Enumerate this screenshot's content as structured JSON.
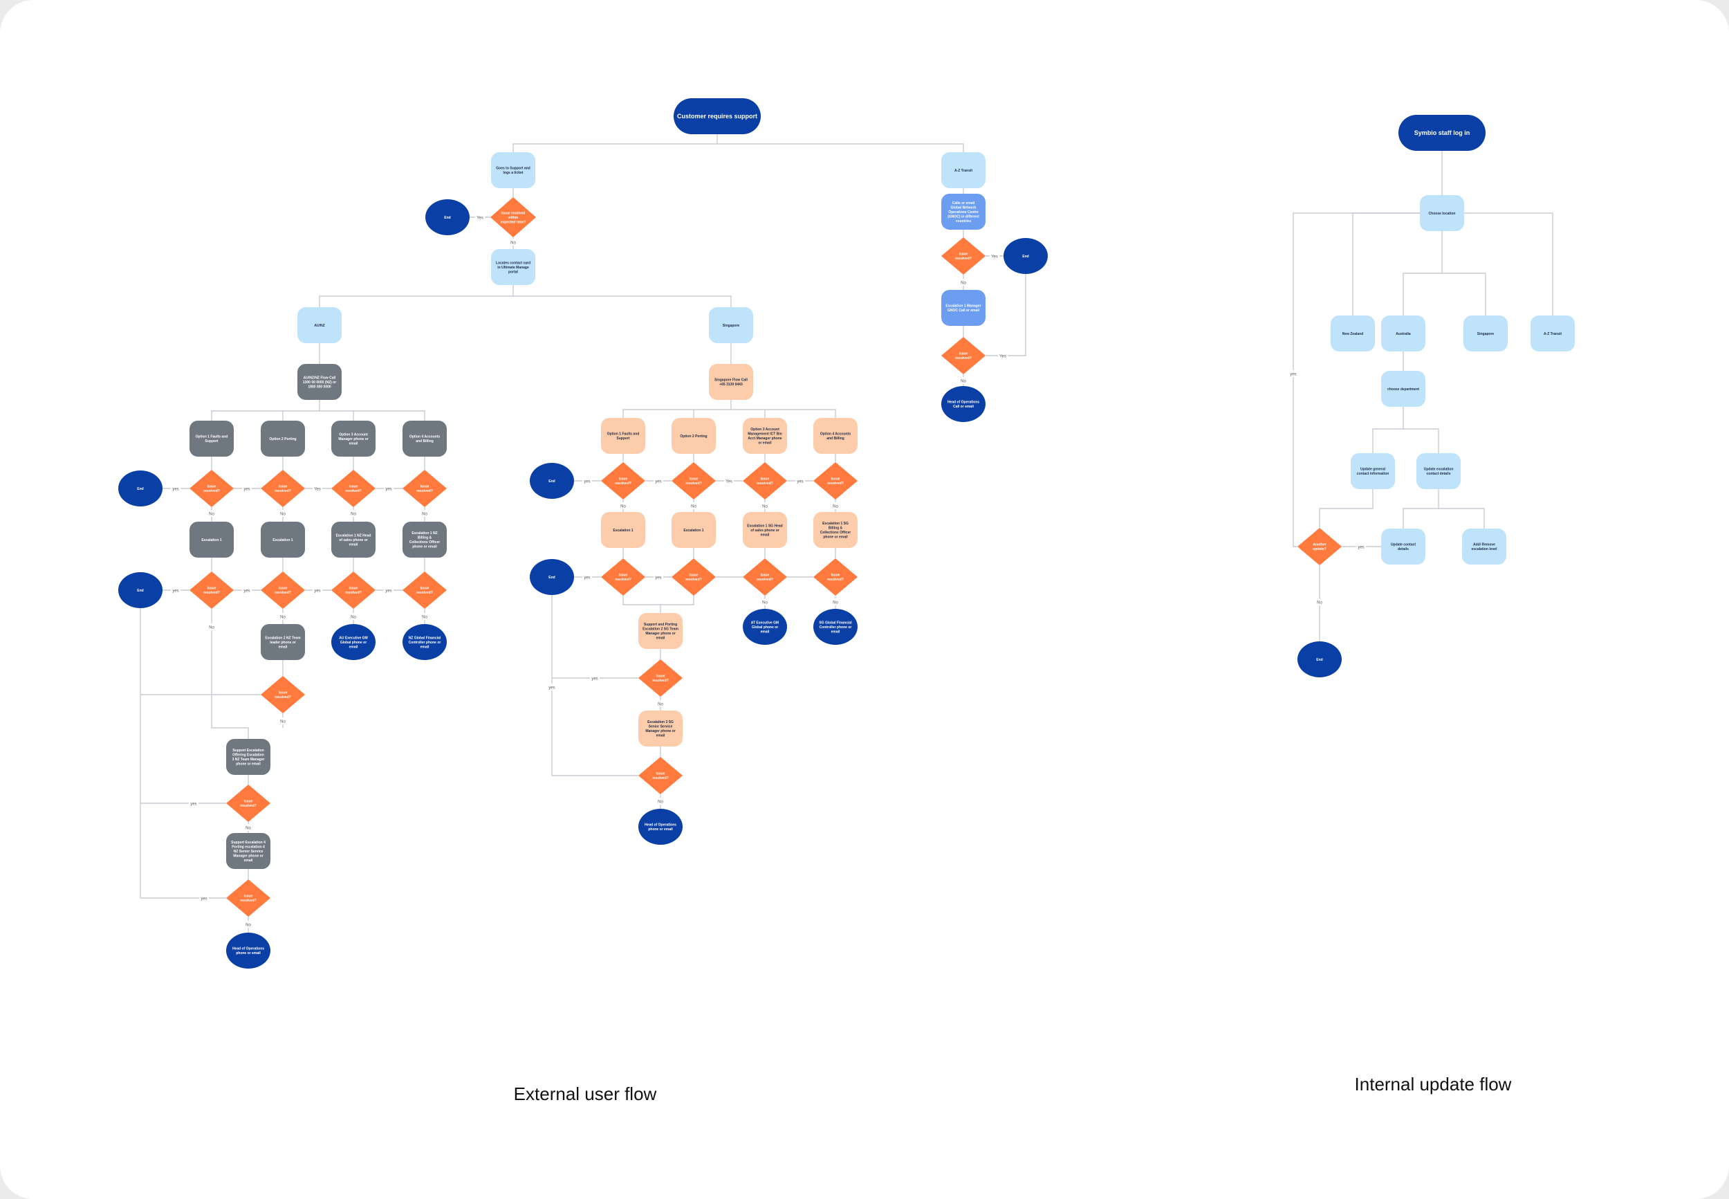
{
  "captions": {
    "external": "External user flow",
    "internal": "Internal update flow"
  },
  "colors": {
    "dark_blue": "#0a3fa6",
    "light_blue": "#bfe3fb",
    "mid_blue": "#6b9df0",
    "gray": "#6f7781",
    "peach": "#fdccaa",
    "orange": "#ff7a3c",
    "line": "#c8ccd2"
  },
  "nodes": {
    "start_ext": "Customer requires support",
    "raise_ticket": "Goes to Support and logs a ticket",
    "issue_resolved_within": "Issue resolved within expected time?",
    "end_top": "End",
    "locates_contact": "Locates contact card in Ultimate Manage portal",
    "au_region": "AU/NZ",
    "au_phone": "AU/NZ/NZ Flow Call 1300 00 0000 (NZ) or 1800 000 0000",
    "au_opt1": "Option 1 Faults and Support",
    "au_opt2": "Option 2 Porting",
    "au_opt3": "Option 3 Account Manager phone or email",
    "au_opt4": "Option 4 Accounts and Billing",
    "au_esc1a": "Escalation 1",
    "au_esc1b": "Escalation 1",
    "au_esc1c": "Escalation 1 NZ Head of sales phone or email",
    "au_esc1d": "Escalation 1 NZ Billing & Collections Officer phone or email",
    "au_end_exec": "AU Executive GM Global phone or email",
    "au_end_cfo": "NZ Global Financial Controller phone or email",
    "au_esc2": "Escalation 2 NZ Team leader phone or email",
    "au_support3": "Support Escalation Offering Escalation 3 NZ Team Manager phone or email",
    "au_support4": "Support Escalation 4 Porting escalation 4 NZ Senior Service Manager phone or email",
    "au_end_head": "Head of Operations phone or email",
    "sg_region": "Singapore",
    "sg_phone": "Singapore Flow Call +65 3130 0443",
    "sg_opt1": "Option 1 Faults and Support",
    "sg_opt2": "Option 2 Porting",
    "sg_opt3": "Option 3 Account Management ICT Bin Acct Manager phone or email",
    "sg_opt4": "Option 4 Accounts and Billing",
    "sg_esc1a": "Escalation 1",
    "sg_esc1b": "Escalation 1",
    "sg_esc1c": "Escalation 1 SG Head of sales phone or email",
    "sg_esc1d": "Escalation 1 SG Billing & Collections Officer phone or email",
    "sg_end_exec": "AT Executive GM Global phone or email",
    "sg_end_cfo": "SG Global Financial Controller phone or email",
    "sg_support": "Support and Porting Escalation 2 SG Team Manager phone or email",
    "sg_esc3": "Escalation 3 SG Senior Service Manager phone or email",
    "sg_end_head": "Head of Operations phone or email",
    "az_region": "A-Z Transit",
    "az_contact": "Calls or email Global Network Operations Centre (GNOC) in different countries",
    "az_issue": "Issue resolved?",
    "az_end": "End",
    "az_esc": "Escalation 1 Manager GNOC Call or email",
    "az_head": "Head of Operations Call or email",
    "issue_resolved": "Issue resolved?",
    "start_int": "Symbio staff log in",
    "choose_loc": "Choose location",
    "int_nz": "New Zealand",
    "int_au": "Australia",
    "int_sg": "Singapore",
    "int_az": "A-Z Transit",
    "int_dept": "choose department",
    "int_update_general": "Update general contact information",
    "int_update_escalation": "Update escalation contact details",
    "int_another": "Another update?",
    "int_update_details": "Update contact details",
    "int_add_remove": "Add/ Remove escalation level",
    "int_end": "End"
  },
  "edge_labels": {
    "yes": "yes",
    "no": "No",
    "yes_cap": "Yes"
  }
}
